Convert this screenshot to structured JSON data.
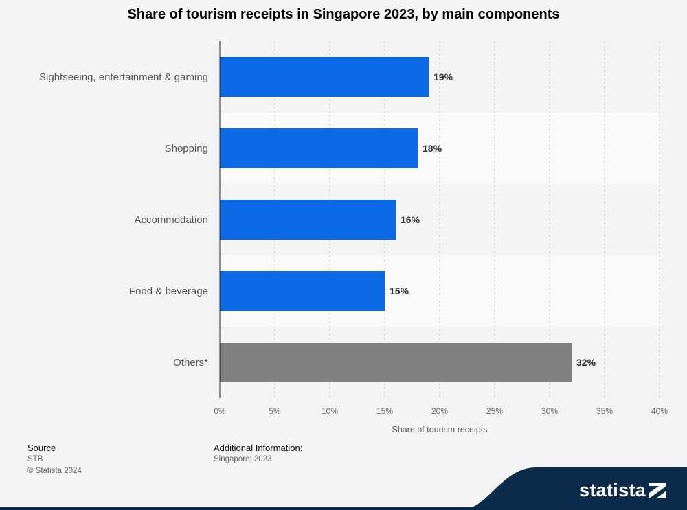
{
  "chart_data": {
    "type": "bar",
    "orientation": "horizontal",
    "title": "Share of tourism receipts in Singapore 2023, by main components",
    "categories": [
      "Sightseeing, entertainment & gaming",
      "Shopping",
      "Accommodation",
      "Food & beverage",
      "Others*"
    ],
    "values": [
      19,
      18,
      16,
      15,
      32
    ],
    "value_labels": [
      "19%",
      "18%",
      "16%",
      "15%",
      "32%"
    ],
    "bar_colors": [
      "#0d6ae6",
      "#0d6ae6",
      "#0d6ae6",
      "#0d6ae6",
      "#808080"
    ],
    "xlabel": "Share of tourism receipts",
    "xlim": [
      0,
      40
    ],
    "x_ticks": [
      "0%",
      "5%",
      "10%",
      "15%",
      "20%",
      "25%",
      "30%",
      "35%",
      "40%"
    ],
    "grid": "vertical dashed"
  },
  "footer": {
    "source_heading": "Source",
    "source_name": "STB",
    "copyright": "© Statista 2024",
    "additional_heading": "Additional Information:",
    "additional_text": "Singapore; 2023"
  },
  "brand": {
    "name": "statista",
    "color": "#0c2a4a"
  }
}
